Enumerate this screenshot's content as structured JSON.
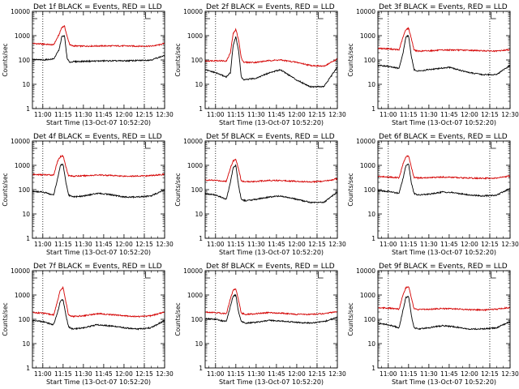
{
  "figure": {
    "time_start": "10:52:20",
    "colors": {
      "events": "#000000",
      "lld": "#d40000",
      "axes": "#000000"
    }
  },
  "chart_data": [
    {
      "type": "line",
      "title": "Det 1f BLACK = Events, RED = LLD",
      "xlabel": "Start Time (13-Oct-07 10:52:20)",
      "ylabel": "Counts/sec",
      "yscale": "log",
      "ylim": [
        1,
        10000
      ],
      "yticks": [
        "1",
        "10",
        "100",
        "1000",
        "10000"
      ],
      "xlim": [
        "10:52:20",
        "12:30:00"
      ],
      "xticks": [
        "11:00",
        "11:15",
        "11:30",
        "11:45",
        "12:00",
        "12:15",
        "12:30"
      ],
      "vlines": [
        "11:00",
        "12:15"
      ],
      "markers": [
        "10:52",
        "12:16"
      ],
      "grid": false,
      "series": [
        {
          "name": "Events",
          "color": "#000000",
          "x": [
            "10:52",
            "11:00",
            "11:08",
            "11:12",
            "11:14",
            "11:16",
            "11:18",
            "11:20",
            "11:22",
            "11:30",
            "11:45",
            "12:00",
            "12:10",
            "12:20",
            "12:26",
            "12:30"
          ],
          "y": [
            105,
            100,
            110,
            260,
            900,
            1000,
            110,
            80,
            85,
            88,
            92,
            92,
            95,
            100,
            130,
            150
          ]
        },
        {
          "name": "LLD",
          "color": "#d40000",
          "x": [
            "10:52",
            "11:00",
            "11:08",
            "11:12",
            "11:14",
            "11:16",
            "11:18",
            "11:20",
            "11:22",
            "11:30",
            "11:45",
            "12:00",
            "12:10",
            "12:20",
            "12:26",
            "12:30"
          ],
          "y": [
            480,
            450,
            420,
            1100,
            2200,
            2500,
            900,
            420,
            380,
            370,
            380,
            380,
            370,
            370,
            420,
            480
          ]
        }
      ]
    },
    {
      "type": "line",
      "title": "Det 2f BLACK = Events, RED = LLD",
      "xlabel": "Start Time (13-Oct-07 10:52:20)",
      "ylabel": "Counts/sec",
      "yscale": "log",
      "ylim": [
        1,
        10000
      ],
      "yticks": [
        "1",
        "10",
        "100",
        "1000",
        "10000"
      ],
      "xlim": [
        "10:52:20",
        "12:30:00"
      ],
      "xticks": [
        "11:00",
        "11:15",
        "11:30",
        "11:45",
        "12:00",
        "12:15",
        "12:30"
      ],
      "vlines": [
        "11:00",
        "12:15"
      ],
      "markers": [
        "10:52",
        "12:16"
      ],
      "grid": false,
      "series": [
        {
          "name": "Events",
          "color": "#000000",
          "x": [
            "10:52",
            "11:00",
            "11:08",
            "11:11",
            "11:13",
            "11:15",
            "11:17",
            "11:19",
            "11:21",
            "11:30",
            "11:40",
            "11:48",
            "12:00",
            "12:10",
            "12:20",
            "12:30"
          ],
          "y": [
            40,
            30,
            20,
            30,
            400,
            900,
            250,
            20,
            15,
            18,
            30,
            40,
            15,
            8,
            8,
            50
          ]
        },
        {
          "name": "LLD",
          "color": "#d40000",
          "x": [
            "10:52",
            "11:00",
            "11:08",
            "11:11",
            "11:13",
            "11:15",
            "11:17",
            "11:19",
            "11:21",
            "11:30",
            "11:40",
            "11:48",
            "12:00",
            "12:10",
            "12:20",
            "12:30"
          ],
          "y": [
            90,
            95,
            90,
            200,
            1200,
            1800,
            700,
            120,
            80,
            80,
            95,
            100,
            80,
            60,
            55,
            110
          ]
        }
      ]
    },
    {
      "type": "line",
      "title": "Det 3f BLACK = Events, RED = LLD",
      "xlabel": "Start Time (13-Oct-07 10:52:20)",
      "ylabel": "Counts/sec",
      "yscale": "log",
      "ylim": [
        1,
        10000
      ],
      "yticks": [
        "1",
        "10",
        "100",
        "1000",
        "10000"
      ],
      "xlim": [
        "10:52:20",
        "12:30:00"
      ],
      "xticks": [
        "11:00",
        "11:15",
        "11:30",
        "11:45",
        "12:00",
        "12:15",
        "12:30"
      ],
      "vlines": [
        "11:00",
        "12:15"
      ],
      "markers": [
        "10:52",
        "12:16"
      ],
      "grid": false,
      "series": [
        {
          "name": "Events",
          "color": "#000000",
          "x": [
            "10:52",
            "11:00",
            "11:08",
            "11:11",
            "11:13",
            "11:15",
            "11:17",
            "11:19",
            "11:22",
            "11:30",
            "11:45",
            "12:00",
            "12:10",
            "12:20",
            "12:30"
          ],
          "y": [
            60,
            55,
            45,
            200,
            900,
            1000,
            150,
            40,
            35,
            40,
            50,
            30,
            25,
            25,
            60
          ]
        },
        {
          "name": "LLD",
          "color": "#d40000",
          "x": [
            "10:52",
            "11:00",
            "11:08",
            "11:11",
            "11:13",
            "11:15",
            "11:17",
            "11:19",
            "11:22",
            "11:30",
            "11:45",
            "12:00",
            "12:10",
            "12:20",
            "12:30"
          ],
          "y": [
            300,
            290,
            260,
            900,
            1800,
            2000,
            800,
            260,
            230,
            240,
            260,
            250,
            240,
            230,
            270
          ]
        }
      ]
    },
    {
      "type": "line",
      "title": "Det 4f BLACK = Events, RED = LLD",
      "xlabel": "Start Time (13-Oct-07 10:52:20)",
      "ylabel": "Counts/sec",
      "yscale": "log",
      "ylim": [
        1,
        10000
      ],
      "yticks": [
        "1",
        "10",
        "100",
        "1000",
        "10000"
      ],
      "xlim": [
        "10:52:20",
        "12:30:00"
      ],
      "xticks": [
        "11:00",
        "11:15",
        "11:30",
        "11:45",
        "12:00",
        "12:15",
        "12:30"
      ],
      "vlines": [
        "11:00",
        "12:15"
      ],
      "markers": [
        "10:52",
        "12:16"
      ],
      "grid": false,
      "series": [
        {
          "name": "Events",
          "color": "#000000",
          "x": [
            "10:52",
            "11:00",
            "11:08",
            "11:11",
            "11:13",
            "11:15",
            "11:17",
            "11:19",
            "11:22",
            "11:30",
            "11:40",
            "11:48",
            "12:00",
            "12:10",
            "12:20",
            "12:30"
          ],
          "y": [
            85,
            80,
            60,
            300,
            1000,
            1100,
            200,
            60,
            50,
            55,
            70,
            65,
            50,
            50,
            55,
            100
          ]
        },
        {
          "name": "LLD",
          "color": "#d40000",
          "x": [
            "10:52",
            "11:00",
            "11:08",
            "11:11",
            "11:13",
            "11:15",
            "11:17",
            "11:19",
            "11:22",
            "11:30",
            "11:40",
            "11:48",
            "12:00",
            "12:10",
            "12:20",
            "12:30"
          ],
          "y": [
            420,
            410,
            400,
            1500,
            2300,
            2500,
            900,
            380,
            360,
            370,
            400,
            390,
            360,
            360,
            380,
            430
          ]
        }
      ]
    },
    {
      "type": "line",
      "title": "Det 5f BLACK = Events, RED = LLD",
      "xlabel": "Start Time (13-Oct-07 10:52:20)",
      "ylabel": "Counts/sec",
      "yscale": "log",
      "ylim": [
        1,
        10000
      ],
      "yticks": [
        "1",
        "10",
        "100",
        "1000",
        "10000"
      ],
      "xlim": [
        "10:52:20",
        "12:30:00"
      ],
      "xticks": [
        "11:00",
        "11:15",
        "11:30",
        "11:45",
        "12:00",
        "12:15",
        "12:30"
      ],
      "vlines": [
        "11:00",
        "12:15"
      ],
      "markers": [
        "10:52",
        "12:16"
      ],
      "grid": false,
      "series": [
        {
          "name": "Events",
          "color": "#000000",
          "x": [
            "10:52",
            "11:00",
            "11:08",
            "11:11",
            "11:13",
            "11:15",
            "11:17",
            "11:19",
            "11:22",
            "11:30",
            "11:40",
            "11:48",
            "12:00",
            "12:10",
            "12:20",
            "12:30"
          ],
          "y": [
            70,
            60,
            40,
            200,
            800,
            1000,
            150,
            40,
            35,
            40,
            50,
            55,
            40,
            30,
            30,
            80
          ]
        },
        {
          "name": "LLD",
          "color": "#d40000",
          "x": [
            "10:52",
            "11:00",
            "11:08",
            "11:11",
            "11:13",
            "11:15",
            "11:17",
            "11:19",
            "11:22",
            "11:30",
            "11:40",
            "11:48",
            "12:00",
            "12:10",
            "12:20",
            "12:30"
          ],
          "y": [
            250,
            240,
            220,
            800,
            1500,
            1800,
            700,
            230,
            210,
            220,
            240,
            240,
            220,
            210,
            220,
            280
          ]
        }
      ]
    },
    {
      "type": "line",
      "title": "Det 6f BLACK = Events, RED = LLD",
      "xlabel": "Start Time (13-Oct-07 10:52:20)",
      "ylabel": "Counts/sec",
      "yscale": "log",
      "ylim": [
        1,
        10000
      ],
      "yticks": [
        "1",
        "10",
        "100",
        "1000",
        "10000"
      ],
      "xlim": [
        "10:52:20",
        "12:30:00"
      ],
      "xticks": [
        "11:00",
        "11:15",
        "11:30",
        "11:45",
        "12:00",
        "12:15",
        "12:30"
      ],
      "vlines": [
        "11:00",
        "12:15"
      ],
      "markers": [
        "10:52",
        "12:16"
      ],
      "grid": false,
      "series": [
        {
          "name": "Events",
          "color": "#000000",
          "x": [
            "10:52",
            "11:00",
            "11:08",
            "11:11",
            "11:13",
            "11:15",
            "11:17",
            "11:19",
            "11:22",
            "11:30",
            "11:40",
            "11:48",
            "12:00",
            "12:10",
            "12:20",
            "12:30"
          ],
          "y": [
            90,
            85,
            70,
            300,
            1000,
            1200,
            200,
            70,
            60,
            65,
            80,
            75,
            60,
            55,
            60,
            110
          ]
        },
        {
          "name": "LLD",
          "color": "#d40000",
          "x": [
            "10:52",
            "11:00",
            "11:08",
            "11:11",
            "11:13",
            "11:15",
            "11:17",
            "11:19",
            "11:22",
            "11:30",
            "11:40",
            "11:48",
            "12:00",
            "12:10",
            "12:20",
            "12:30"
          ],
          "y": [
            350,
            330,
            310,
            1200,
            2200,
            2500,
            850,
            320,
            300,
            310,
            330,
            320,
            300,
            290,
            300,
            360
          ]
        }
      ]
    },
    {
      "type": "line",
      "title": "Det 7f BLACK = Events, RED = LLD",
      "xlabel": "Start Time (13-Oct-07 10:52:20)",
      "ylabel": "Counts/sec",
      "yscale": "log",
      "ylim": [
        1,
        10000
      ],
      "yticks": [
        "1",
        "10",
        "100",
        "1000",
        "10000"
      ],
      "xlim": [
        "10:52:20",
        "12:30:00"
      ],
      "xticks": [
        "11:00",
        "11:15",
        "11:30",
        "11:45",
        "12:00",
        "12:15",
        "12:30"
      ],
      "vlines": [
        "11:00",
        "12:15"
      ],
      "markers": [
        "10:52",
        "12:16"
      ],
      "grid": false,
      "series": [
        {
          "name": "Events",
          "color": "#000000",
          "x": [
            "10:52",
            "11:00",
            "11:08",
            "11:11",
            "11:13",
            "11:15",
            "11:17",
            "11:19",
            "11:22",
            "11:30",
            "11:40",
            "11:48",
            "12:00",
            "12:10",
            "12:20",
            "12:30"
          ],
          "y": [
            90,
            80,
            60,
            200,
            550,
            650,
            150,
            50,
            40,
            45,
            60,
            55,
            45,
            40,
            45,
            90
          ]
        },
        {
          "name": "LLD",
          "color": "#d40000",
          "x": [
            "10:52",
            "11:00",
            "11:08",
            "11:11",
            "11:13",
            "11:15",
            "11:17",
            "11:19",
            "11:22",
            "11:30",
            "11:40",
            "11:48",
            "12:00",
            "12:10",
            "12:20",
            "12:30"
          ],
          "y": [
            190,
            180,
            150,
            600,
            1600,
            2000,
            550,
            150,
            130,
            140,
            170,
            160,
            140,
            130,
            140,
            200
          ]
        }
      ]
    },
    {
      "type": "line",
      "title": "Det 8f BLACK = Events, RED = LLD",
      "xlabel": "Start Time (13-Oct-07 10:52:20)",
      "ylabel": "Counts/sec",
      "yscale": "log",
      "ylim": [
        1,
        10000
      ],
      "yticks": [
        "1",
        "10",
        "100",
        "1000",
        "10000"
      ],
      "xlim": [
        "10:52:20",
        "12:30:00"
      ],
      "xticks": [
        "11:00",
        "11:15",
        "11:30",
        "11:45",
        "12:00",
        "12:15",
        "12:30"
      ],
      "vlines": [
        "11:00",
        "12:15"
      ],
      "markers": [
        "10:52",
        "12:16"
      ],
      "grid": false,
      "series": [
        {
          "name": "Events",
          "color": "#000000",
          "x": [
            "10:52",
            "11:00",
            "11:08",
            "11:11",
            "11:13",
            "11:15",
            "11:17",
            "11:19",
            "11:22",
            "11:30",
            "11:40",
            "11:48",
            "12:00",
            "12:10",
            "12:20",
            "12:30"
          ],
          "y": [
            110,
            100,
            80,
            350,
            900,
            1000,
            200,
            80,
            70,
            75,
            90,
            85,
            75,
            70,
            80,
            120
          ]
        },
        {
          "name": "LLD",
          "color": "#d40000",
          "x": [
            "10:52",
            "11:00",
            "11:08",
            "11:11",
            "11:13",
            "11:15",
            "11:17",
            "11:19",
            "11:22",
            "11:30",
            "11:40",
            "11:48",
            "12:00",
            "12:10",
            "12:20",
            "12:30"
          ],
          "y": [
            200,
            190,
            170,
            700,
            1600,
            1800,
            600,
            180,
            160,
            170,
            190,
            180,
            160,
            160,
            170,
            210
          ]
        }
      ]
    },
    {
      "type": "line",
      "title": "Det 9f BLACK = Events, RED = LLD",
      "xlabel": "Start Time (13-Oct-07 10:52:20)",
      "ylabel": "Counts/sec",
      "yscale": "log",
      "ylim": [
        1,
        10000
      ],
      "yticks": [
        "1",
        "10",
        "100",
        "1000",
        "10000"
      ],
      "xlim": [
        "10:52:20",
        "12:30:00"
      ],
      "xticks": [
        "11:00",
        "11:15",
        "11:30",
        "11:45",
        "12:00",
        "12:15",
        "12:30"
      ],
      "vlines": [
        "11:00",
        "12:15"
      ],
      "markers": [
        "10:52",
        "12:16"
      ],
      "grid": false,
      "series": [
        {
          "name": "Events",
          "color": "#000000",
          "x": [
            "10:52",
            "11:00",
            "11:08",
            "11:11",
            "11:13",
            "11:15",
            "11:17",
            "11:19",
            "11:22",
            "11:30",
            "11:40",
            "11:48",
            "12:00",
            "12:10",
            "12:20",
            "12:30"
          ],
          "y": [
            70,
            60,
            45,
            250,
            800,
            900,
            150,
            45,
            40,
            45,
            55,
            50,
            40,
            40,
            45,
            80
          ]
        },
        {
          "name": "LLD",
          "color": "#d40000",
          "x": [
            "10:52",
            "11:00",
            "11:08",
            "11:11",
            "11:13",
            "11:15",
            "11:17",
            "11:19",
            "11:22",
            "11:30",
            "11:40",
            "11:48",
            "12:00",
            "12:10",
            "12:20",
            "12:30"
          ],
          "y": [
            300,
            290,
            260,
            1100,
            2000,
            2300,
            800,
            270,
            250,
            260,
            280,
            270,
            250,
            240,
            260,
            310
          ]
        }
      ]
    }
  ]
}
